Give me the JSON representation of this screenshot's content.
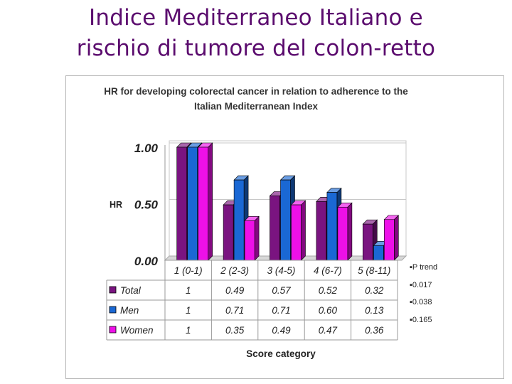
{
  "slide": {
    "title_line1": "Indice Mediterraneo Italiano e",
    "title_line2": "rischio di tumore del colon-retto"
  },
  "chart_data": {
    "type": "bar",
    "title_line1": "HR for developing colorectal cancer in relation to adherence to the",
    "title_line2": "Italian Mediterranean Index",
    "xlabel": "Score category",
    "ylabel": "HR",
    "ylim": [
      0,
      1.0
    ],
    "yticks": [
      "0.00",
      "0.50",
      "1.00"
    ],
    "categories": [
      "1 (0-1)",
      "2 (2-3)",
      "3 (4-5)",
      "4 (6-7)",
      "5 (8-11)"
    ],
    "series": [
      {
        "name": "Total",
        "color": "#7a1480",
        "values": [
          1,
          0.49,
          0.57,
          0.52,
          0.32
        ],
        "labels": [
          "1",
          "0.49",
          "0.57",
          "0.52",
          "0.32"
        ]
      },
      {
        "name": "Men",
        "color": "#1a68d4",
        "values": [
          1,
          0.71,
          0.71,
          0.6,
          0.13
        ],
        "labels": [
          "1",
          "0.71",
          "0.71",
          "0.60",
          "0.13"
        ]
      },
      {
        "name": "Women",
        "color": "#ee10e8",
        "values": [
          1,
          0.35,
          0.49,
          0.47,
          0.36
        ],
        "labels": [
          "1",
          "0.35",
          "0.49",
          "0.47",
          "0.36"
        ]
      }
    ],
    "data_table": true,
    "grid": true
  },
  "p_trend": {
    "header": "P trend",
    "values": [
      "0.017",
      "0.038",
      "0.165"
    ]
  }
}
